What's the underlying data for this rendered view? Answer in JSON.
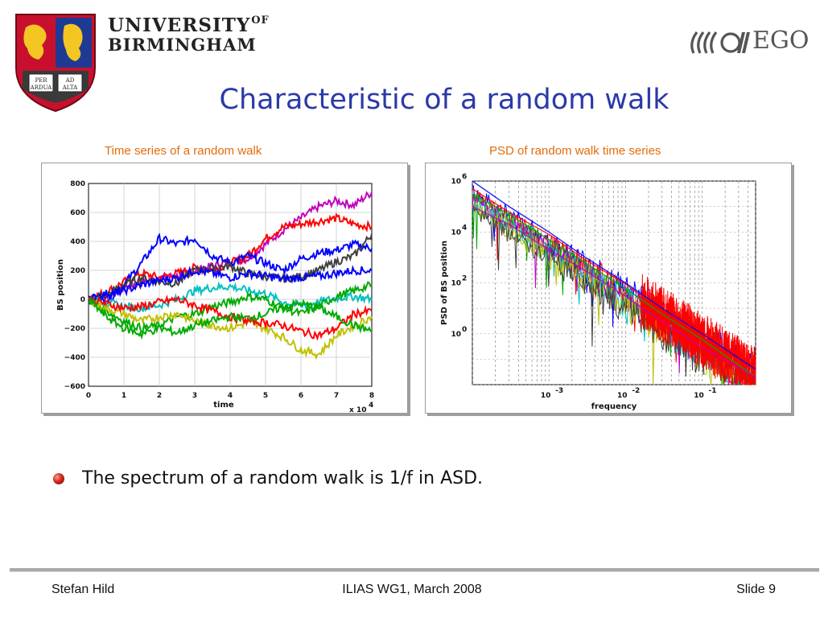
{
  "header": {
    "university_line1": "UNIVERSITY",
    "university_of": "OF",
    "university_line2": "BIRMINGHAM",
    "crest_motto": [
      "PER",
      "AD",
      "ARDUA",
      "ALTA"
    ],
    "ego_label": "EGO"
  },
  "slide": {
    "title": "Characteristic of a random walk",
    "bullet": "The spectrum of a random walk is 1/f in ASD."
  },
  "footer": {
    "author": "Stefan Hild",
    "event": "ILIAS WG1, March 2008",
    "slide_label": "Slide 9"
  },
  "colors": {
    "title": "#2b3aa7",
    "subtitle": "#e36c0a",
    "series": [
      "#0000ff",
      "#ff0000",
      "#00aa00",
      "#c000c0",
      "#00c0c0",
      "#c0c000",
      "#404040"
    ]
  },
  "chart_data": [
    {
      "type": "line",
      "title": "Time series of a random walk",
      "xlabel": "time",
      "ylabel": "BS position",
      "x_multiplier": "x 10^4",
      "xlim": [
        0,
        8
      ],
      "ylim": [
        -600,
        800
      ],
      "x_ticks": [
        "0",
        "1",
        "2",
        "3",
        "4",
        "5",
        "6",
        "7",
        "8"
      ],
      "y_ticks": [
        "800",
        "600",
        "400",
        "200",
        "0",
        "−200",
        "−400",
        "−600"
      ],
      "grid": true,
      "series": [
        {
          "color": "#c000c0",
          "x": [
            0,
            0.5,
            1,
            1.5,
            2,
            2.5,
            3,
            3.5,
            4,
            4.5,
            5,
            5.5,
            6,
            6.5,
            7,
            7.5,
            8
          ],
          "values": [
            0,
            20,
            80,
            120,
            150,
            160,
            200,
            230,
            260,
            280,
            380,
            480,
            560,
            640,
            680,
            650,
            740
          ]
        },
        {
          "color": "#ff0000",
          "x": [
            0,
            0.5,
            1,
            1.5,
            2,
            2.5,
            3,
            3.5,
            4,
            4.5,
            5,
            5.5,
            6,
            6.5,
            7,
            7.5,
            8
          ],
          "values": [
            0,
            50,
            120,
            180,
            150,
            180,
            220,
            200,
            250,
            300,
            420,
            500,
            520,
            540,
            560,
            520,
            500
          ]
        },
        {
          "color": "#0000ff",
          "x": [
            0,
            0.5,
            1,
            1.5,
            2,
            2.5,
            3,
            3.5,
            4,
            4.5,
            5,
            5.5,
            6,
            6.5,
            7,
            7.5,
            8
          ],
          "values": [
            0,
            -20,
            100,
            250,
            420,
            380,
            420,
            300,
            250,
            300,
            250,
            200,
            280,
            320,
            340,
            380,
            350
          ]
        },
        {
          "color": "#404040",
          "x": [
            0,
            0.5,
            1,
            1.5,
            2,
            2.5,
            3,
            3.5,
            4,
            4.5,
            5,
            5.5,
            6,
            6.5,
            7,
            7.5,
            8
          ],
          "values": [
            0,
            30,
            100,
            150,
            120,
            110,
            200,
            220,
            230,
            180,
            160,
            140,
            160,
            200,
            260,
            300,
            450
          ]
        },
        {
          "color": "#0000ff",
          "x": [
            0,
            0.5,
            1,
            1.5,
            2,
            2.5,
            3,
            3.5,
            4,
            4.5,
            5,
            5.5,
            6,
            6.5,
            7,
            7.5,
            8
          ],
          "values": [
            0,
            40,
            60,
            100,
            130,
            150,
            200,
            180,
            150,
            180,
            160,
            140,
            150,
            160,
            180,
            200,
            200
          ]
        },
        {
          "color": "#00c0c0",
          "x": [
            0,
            0.5,
            1,
            1.5,
            2,
            2.5,
            3,
            3.5,
            4,
            4.5,
            5,
            5.5,
            6,
            6.5,
            7,
            7.5,
            8
          ],
          "values": [
            0,
            -20,
            -50,
            -60,
            -40,
            0,
            60,
            80,
            90,
            60,
            40,
            -20,
            -40,
            -20,
            10,
            20,
            0
          ]
        },
        {
          "color": "#00aa00",
          "x": [
            0,
            0.5,
            1,
            1.5,
            2,
            2.5,
            3,
            3.5,
            4,
            4.5,
            5,
            5.5,
            6,
            6.5,
            7,
            7.5,
            8
          ],
          "values": [
            0,
            -80,
            -150,
            -200,
            -180,
            -120,
            -100,
            -50,
            -20,
            20,
            0,
            -60,
            -100,
            -50,
            20,
            60,
            100
          ]
        },
        {
          "color": "#c0c000",
          "x": [
            0,
            0.5,
            1,
            1.5,
            2,
            2.5,
            3,
            3.5,
            4,
            4.5,
            5,
            5.5,
            6,
            6.5,
            7,
            7.5,
            8
          ],
          "values": [
            0,
            -60,
            -100,
            -150,
            -120,
            -100,
            -150,
            -180,
            -200,
            -160,
            -200,
            -260,
            -350,
            -380,
            -250,
            -180,
            -120
          ]
        },
        {
          "color": "#ff0000",
          "x": [
            0,
            0.5,
            1,
            1.5,
            2,
            2.5,
            3,
            3.5,
            4,
            4.5,
            5,
            5.5,
            6,
            6.5,
            7,
            7.5,
            8
          ],
          "values": [
            0,
            -30,
            -60,
            -50,
            -20,
            0,
            -40,
            -80,
            -120,
            -150,
            -160,
            -180,
            -220,
            -250,
            -200,
            -100,
            -80
          ]
        },
        {
          "color": "#00aa00",
          "x": [
            0,
            0.5,
            1,
            1.5,
            2,
            2.5,
            3,
            3.5,
            4,
            4.5,
            5,
            5.5,
            6,
            6.5,
            7,
            7.5,
            8
          ],
          "values": [
            0,
            -120,
            -200,
            -240,
            -200,
            -230,
            -180,
            -150,
            -120,
            -130,
            -100,
            -50,
            -30,
            -60,
            -120,
            -180,
            -220
          ]
        }
      ]
    },
    {
      "type": "line",
      "title": "PSD of random walk time series",
      "xlabel": "frequency",
      "ylabel": "PSD of BS position",
      "x_scale": "log",
      "y_scale": "log",
      "xlim": [
        0.0001,
        0.5
      ],
      "ylim": [
        0.01,
        1000000
      ],
      "x_ticks": [
        "10^-3",
        "10^-2",
        "10^-1"
      ],
      "y_ticks": [
        "10^6",
        "10^4",
        "10^2",
        "10^0"
      ],
      "grid": true,
      "series": [
        {
          "color": "#0000ff",
          "x": [
            0.0001,
            0.0003,
            0.001,
            0.003,
            0.01,
            0.03,
            0.1,
            0.5
          ],
          "values": [
            1000000,
            100000,
            10000,
            1000,
            100,
            10,
            1,
            0.04
          ]
        },
        {
          "color": "#ff0000",
          "x": [
            0.0001,
            0.0003,
            0.001,
            0.003,
            0.01,
            0.03,
            0.1,
            0.5
          ],
          "values": [
            500000,
            60000,
            8000,
            800,
            90,
            8,
            0.8,
            0.03
          ]
        },
        {
          "color": "#00aa00",
          "x": [
            0.0001,
            0.0003,
            0.001,
            0.003,
            0.01,
            0.03,
            0.1,
            0.5
          ],
          "values": [
            300000,
            50000,
            5000,
            600,
            60,
            6,
            0.6,
            0.02
          ]
        },
        {
          "color": "#c000c0",
          "x": [
            0.0001,
            0.0003,
            0.001,
            0.003,
            0.01,
            0.03,
            0.1,
            0.5
          ],
          "values": [
            100000,
            20000,
            2000,
            300,
            30,
            3,
            0.3,
            0.02
          ]
        }
      ]
    }
  ]
}
